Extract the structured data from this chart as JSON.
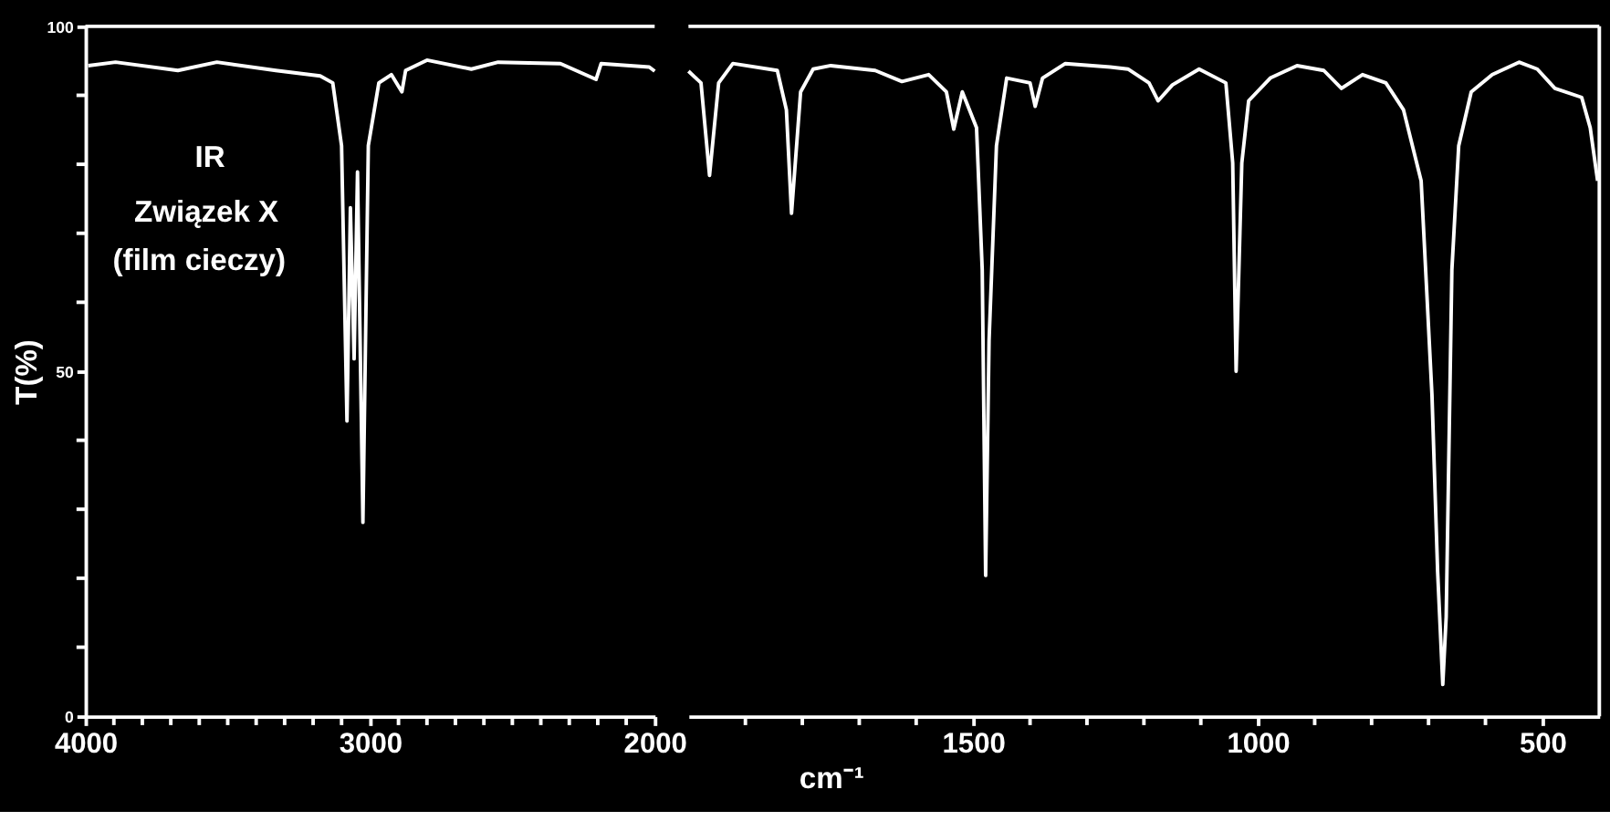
{
  "chart_data": [
    {
      "type": "line",
      "ylabel": "T(%)",
      "annotations": [
        "IR",
        "Związek X",
        "(film cieczy)"
      ],
      "xlim": [
        4000,
        2000
      ],
      "ylim": [
        0,
        100
      ],
      "xticks": [
        4000,
        {
          "value": 3900,
          "label": null
        },
        {
          "value": 3800,
          "label": null
        },
        {
          "value": 3700,
          "label": null
        },
        {
          "value": 3600,
          "label": null
        },
        {
          "value": 3500,
          "label": null
        },
        {
          "value": 3400,
          "label": null
        },
        {
          "value": 3300,
          "label": null
        },
        {
          "value": 3200,
          "label": null
        },
        {
          "value": 3100,
          "label": null
        },
        3000,
        {
          "value": 2900,
          "label": null
        },
        {
          "value": 2800,
          "label": null
        },
        {
          "value": 2700,
          "label": null
        },
        {
          "value": 2600,
          "label": null
        },
        {
          "value": 2500,
          "label": null
        },
        {
          "value": 2400,
          "label": null
        },
        {
          "value": 2300,
          "label": null
        },
        {
          "value": 2200,
          "label": null
        },
        {
          "value": 2100,
          "label": null
        },
        2000
      ],
      "yticks": [
        0,
        {
          "value": 10,
          "label": null
        },
        {
          "value": 20,
          "label": null
        },
        {
          "value": 30,
          "label": null
        },
        {
          "value": 40,
          "label": null
        },
        50,
        {
          "value": 60,
          "label": null
        },
        {
          "value": 70,
          "label": null
        },
        {
          "value": 80,
          "label": null
        },
        {
          "value": 90,
          "label": null
        },
        100
      ],
      "grid": false,
      "legend": false,
      "marker": "none",
      "line_style": "solid",
      "series": [
        {
          "color": "#ffffff",
          "x": [
            3990,
            3894,
            3675,
            3538,
            3331,
            3175,
            3131,
            3100,
            3081,
            3069,
            3056,
            3044,
            3025,
            3006,
            2969,
            2925,
            2888,
            2875,
            2800,
            2644,
            2550,
            2331,
            2206,
            2188,
            2019,
            2000
          ],
          "values": [
            94.3,
            94.8,
            93.6,
            94.8,
            93.6,
            92.8,
            91.8,
            82.7,
            42.8,
            73.7,
            51.8,
            78.9,
            28.1,
            82.7,
            91.8,
            93,
            90.5,
            93.6,
            95.1,
            93.8,
            94.8,
            94.6,
            92.3,
            94.6,
            94.1,
            93.5
          ]
        }
      ]
    },
    {
      "type": "line",
      "xlabel": "cm⁻¹",
      "tick_labels": "x",
      "xlim": [
        2000,
        400
      ],
      "ylim": [
        0,
        100
      ],
      "xticks": [
        {
          "value": 1900,
          "label": null
        },
        {
          "value": 1800,
          "label": null
        },
        {
          "value": 1700,
          "label": null
        },
        {
          "value": 1600,
          "label": null
        },
        1500,
        {
          "value": 1400,
          "label": null
        },
        {
          "value": 1300,
          "label": null
        },
        {
          "value": 1200,
          "label": null
        },
        {
          "value": 1100,
          "label": null
        },
        1000,
        {
          "value": 900,
          "label": null
        },
        {
          "value": 800,
          "label": null
        },
        {
          "value": 700,
          "label": null
        },
        {
          "value": 600,
          "label": null
        },
        500
      ],
      "grid": false,
      "legend": false,
      "marker": "none",
      "line_style": "solid",
      "series": [
        {
          "color": "#ffffff",
          "x": [
            2000,
            1978,
            1963,
            1947,
            1922,
            1844,
            1828,
            1819,
            1803,
            1781,
            1750,
            1672,
            1625,
            1578,
            1547,
            1534,
            1519,
            1494,
            1484,
            1478,
            1472,
            1459,
            1441,
            1400,
            1391,
            1378,
            1338,
            1259,
            1228,
            1191,
            1175,
            1150,
            1103,
            1056,
            1044,
            1038,
            1028,
            1016,
            978,
            931,
            884,
            853,
            816,
            775,
            744,
            713,
            694,
            684,
            675,
            669,
            659,
            647,
            625,
            588,
            541,
            509,
            478,
            431,
            416,
            403
          ],
          "values": [
            93.5,
            91.8,
            78.4,
            91.8,
            94.6,
            93.6,
            87.9,
            72.9,
            90.5,
            93.8,
            94.3,
            93.6,
            92,
            93,
            90.5,
            85.1,
            90.5,
            85.3,
            64.7,
            20.4,
            54.4,
            82.7,
            92.5,
            91.8,
            88.4,
            92.5,
            94.6,
            94.1,
            93.8,
            91.8,
            89.2,
            91.5,
            93.8,
            91.8,
            80.2,
            50,
            80.2,
            89.2,
            92.5,
            94.3,
            93.6,
            91,
            93,
            91.8,
            87.9,
            77.6,
            46.6,
            20.9,
            4.6,
            14.4,
            64.7,
            82.7,
            90.5,
            93,
            94.8,
            93.8,
            91,
            89.7,
            85.3,
            77.6
          ]
        }
      ]
    }
  ]
}
